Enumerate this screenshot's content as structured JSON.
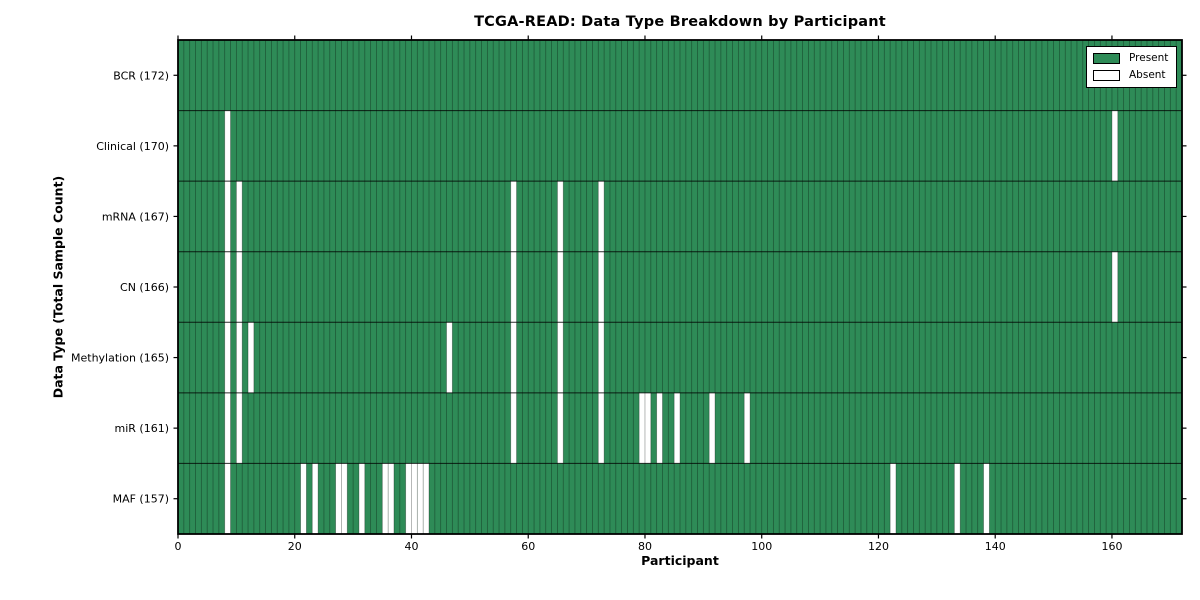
{
  "chart_data": {
    "type": "heatmap",
    "title": "TCGA-READ: Data Type Breakdown by Participant",
    "xlabel": "Participant",
    "ylabel": "Data Type (Total Sample Count)",
    "n_participants": 172,
    "xlim": [
      0,
      172
    ],
    "x_ticks": [
      0,
      20,
      40,
      60,
      80,
      100,
      120,
      140,
      160
    ],
    "grid": "cell-borders",
    "legend_position": "upper-right",
    "legend": {
      "present": "Present",
      "absent": "Absent"
    },
    "colors": {
      "present": "#2e8b57",
      "absent": "#ffffff",
      "cell_edge": "#00000059",
      "row_divider": "#000000cc",
      "plot_border": "#000000",
      "background": "#ffffff"
    },
    "rows": [
      {
        "name": "BCR",
        "total": 172,
        "label": "BCR (172)",
        "absent": []
      },
      {
        "name": "Clinical",
        "total": 170,
        "label": "Clinical (170)",
        "absent": [
          8,
          160
        ]
      },
      {
        "name": "mRNA",
        "total": 167,
        "label": "mRNA (167)",
        "absent": [
          8,
          10,
          57,
          65,
          72
        ]
      },
      {
        "name": "CN",
        "total": 166,
        "label": "CN (166)",
        "absent": [
          8,
          10,
          57,
          65,
          72,
          160
        ]
      },
      {
        "name": "Methylation",
        "total": 165,
        "label": "Methylation (165)",
        "absent": [
          8,
          10,
          12,
          46,
          57,
          65,
          72
        ]
      },
      {
        "name": "miR",
        "total": 161,
        "label": "miR (161)",
        "absent": [
          8,
          10,
          57,
          65,
          72,
          79,
          80,
          82,
          85,
          91,
          97
        ]
      },
      {
        "name": "MAF",
        "total": 157,
        "label": "MAF (157)",
        "absent": [
          8,
          21,
          23,
          27,
          28,
          31,
          35,
          36,
          39,
          40,
          41,
          42,
          122,
          133,
          138
        ]
      }
    ]
  }
}
